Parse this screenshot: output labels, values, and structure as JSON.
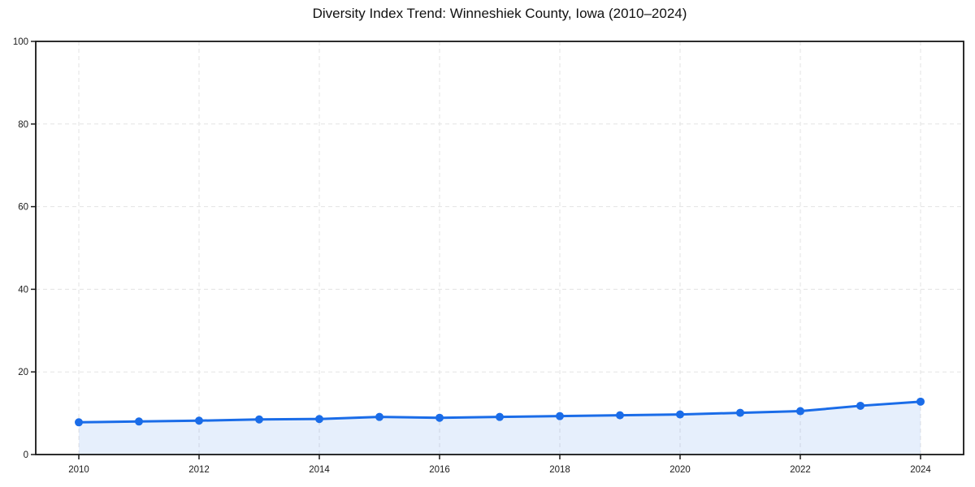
{
  "chart_data": {
    "type": "area",
    "title": "Diversity Index Trend: Winneshiek County, Iowa (2010–2024)",
    "series_name": "Diversity Index",
    "x": [
      2010,
      2011,
      2012,
      2013,
      2014,
      2015,
      2016,
      2017,
      2018,
      2019,
      2020,
      2021,
      2022,
      2023,
      2024
    ],
    "values": [
      7.8,
      8.0,
      8.2,
      8.5,
      8.6,
      9.1,
      8.9,
      9.1,
      9.3,
      9.5,
      9.7,
      10.1,
      10.5,
      11.8,
      12.8
    ],
    "xlabel": "",
    "ylabel": "",
    "ylim": [
      0,
      100
    ],
    "yticks": [
      0,
      20,
      40,
      60,
      80,
      100
    ],
    "xticks": [
      2010,
      2012,
      2014,
      2016,
      2018,
      2020,
      2022,
      2024
    ],
    "grid": true,
    "grid_style": "dashed",
    "legend": false,
    "colors": {
      "line": "#1a6ce8",
      "marker": "#1a6ce8",
      "fill": "rgba(26,108,232,0.11)",
      "grid": "#e3e3e3",
      "spine": "#161616",
      "tick": "#1a1a1a",
      "tick_label": "#1b1b1b",
      "title": "#111111",
      "background": "#ffffff"
    }
  }
}
